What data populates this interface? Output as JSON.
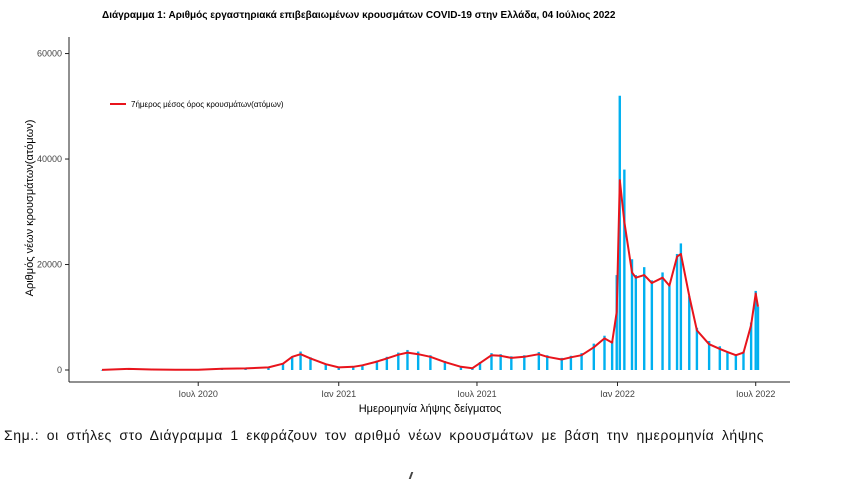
{
  "chart_data": {
    "type": "bar",
    "title": "Διάγραμμα 1: Αριθμός εργαστηριακά επιβεβαιωμένων κρουσμάτων COVID-19 στην Ελλάδα, 04 Ιούλιος 2022",
    "xlabel": "Ημερομηνία λήψης δείγματος",
    "ylabel": "Αριθμός νέων κρουσμάτων(ατόμων)",
    "ylim": [
      0,
      62000
    ],
    "yticks": [
      0,
      20000,
      40000,
      60000
    ],
    "ytick_labels": [
      "0",
      "20000",
      "40000",
      "60000"
    ],
    "xlim": [
      "2020-02-26",
      "2022-07-04"
    ],
    "xticks": [
      "2020-07-01",
      "2021-01-01",
      "2021-07-01",
      "2022-01-01",
      "2022-07-01"
    ],
    "xtick_labels": [
      "Ιουλ 2020",
      "Ιαν 2021",
      "Ιουλ 2021",
      "Ιαν 2022",
      "Ιουλ 2022"
    ],
    "grid": false,
    "legend": {
      "position": "top-left",
      "entries": [
        "7ήμερος μέσος όρος κρουσμάτων(ατόμων)"
      ]
    },
    "bar_color": "#00b0f0",
    "line_color": "#e8141c",
    "series": [
      {
        "kind": "bars",
        "x": [
          "2020-02-26",
          "2020-04-01",
          "2020-05-01",
          "2020-06-01",
          "2020-07-01",
          "2020-08-01",
          "2020-09-01",
          "2020-10-01",
          "2020-10-20",
          "2020-11-01",
          "2020-11-12",
          "2020-11-25",
          "2020-12-15",
          "2021-01-01",
          "2021-01-20",
          "2021-02-01",
          "2021-02-20",
          "2021-03-05",
          "2021-03-20",
          "2021-04-01",
          "2021-04-15",
          "2021-05-01",
          "2021-05-20",
          "2021-06-10",
          "2021-06-25",
          "2021-07-05",
          "2021-07-20",
          "2021-08-01",
          "2021-08-15",
          "2021-09-01",
          "2021-09-20",
          "2021-10-01",
          "2021-10-20",
          "2021-11-01",
          "2021-11-15",
          "2021-12-01",
          "2021-12-15",
          "2021-12-25",
          "2021-12-31",
          "2022-01-04",
          "2022-01-10",
          "2022-01-20",
          "2022-01-25",
          "2022-02-05",
          "2022-02-15",
          "2022-03-01",
          "2022-03-10",
          "2022-03-20",
          "2022-03-25",
          "2022-04-05",
          "2022-04-15",
          "2022-05-01",
          "2022-05-15",
          "2022-05-25",
          "2022-06-05",
          "2022-06-15",
          "2022-06-25",
          "2022-07-01",
          "2022-07-04"
        ],
        "values": [
          10,
          200,
          100,
          60,
          40,
          250,
          300,
          500,
          1200,
          2500,
          3500,
          2400,
          1200,
          600,
          700,
          1000,
          1800,
          2500,
          3300,
          3800,
          3500,
          2800,
          1700,
          700,
          400,
          1500,
          3200,
          3000,
          2600,
          2800,
          3400,
          2800,
          2300,
          2700,
          3200,
          5000,
          6500,
          5500,
          18000,
          52000,
          38000,
          21000,
          18000,
          19500,
          17000,
          18500,
          16000,
          22000,
          24000,
          14000,
          8000,
          5500,
          4500,
          3500,
          2800,
          3500,
          9000,
          15000,
          12000
        ]
      },
      {
        "kind": "line",
        "name": "7ήμερος μέσος όρος κρουσμάτων(ατόμων)",
        "x": [
          "2020-02-26",
          "2020-04-01",
          "2020-05-01",
          "2020-06-01",
          "2020-07-01",
          "2020-08-01",
          "2020-09-01",
          "2020-10-01",
          "2020-10-20",
          "2020-11-01",
          "2020-11-12",
          "2020-11-25",
          "2020-12-15",
          "2021-01-01",
          "2021-01-20",
          "2021-02-01",
          "2021-02-20",
          "2021-03-05",
          "2021-03-20",
          "2021-04-01",
          "2021-04-15",
          "2021-05-01",
          "2021-05-20",
          "2021-06-10",
          "2021-06-25",
          "2021-07-05",
          "2021-07-20",
          "2021-08-01",
          "2021-08-15",
          "2021-09-01",
          "2021-09-20",
          "2021-10-01",
          "2021-10-20",
          "2021-11-01",
          "2021-11-15",
          "2021-12-01",
          "2021-12-15",
          "2021-12-25",
          "2021-12-31",
          "2022-01-04",
          "2022-01-10",
          "2022-01-20",
          "2022-01-25",
          "2022-02-05",
          "2022-02-15",
          "2022-03-01",
          "2022-03-10",
          "2022-03-20",
          "2022-03-25",
          "2022-04-05",
          "2022-04-15",
          "2022-05-01",
          "2022-05-15",
          "2022-05-25",
          "2022-06-05",
          "2022-06-15",
          "2022-06-25",
          "2022-07-01",
          "2022-07-04"
        ],
        "values": [
          10,
          200,
          100,
          60,
          40,
          250,
          300,
          500,
          1200,
          2500,
          3000,
          2200,
          1100,
          500,
          600,
          900,
          1600,
          2200,
          2900,
          3300,
          3000,
          2500,
          1500,
          600,
          350,
          1300,
          2800,
          2700,
          2300,
          2500,
          3000,
          2500,
          2000,
          2400,
          2800,
          4300,
          6000,
          5200,
          11000,
          36000,
          28000,
          18500,
          17500,
          18000,
          16500,
          17500,
          16000,
          21500,
          22000,
          14000,
          7500,
          4900,
          4000,
          3400,
          2800,
          3300,
          8500,
          14500,
          12000
        ]
      }
    ]
  },
  "note": "Σημ.:  οι στήλες στο Διάγραμμα 1 εκφράζουν τον αριθμό νέων κρουσμάτων με βάση την ημερομηνία λήψης"
}
